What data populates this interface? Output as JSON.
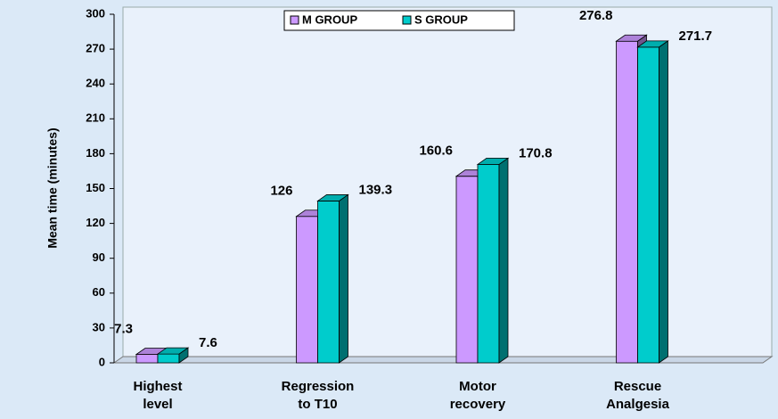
{
  "chart_data": {
    "type": "bar3d",
    "y_label": "Mean time (minutes)",
    "categories": [
      [
        "Highest",
        "level"
      ],
      [
        "Regression",
        "to T10"
      ],
      [
        "Motor",
        "recovery"
      ],
      [
        "Rescue",
        "Analgesia"
      ]
    ],
    "series": [
      {
        "name": "M GROUP",
        "color": "#cc99ff",
        "values": [
          7.3,
          126,
          160.6,
          276.8
        ]
      },
      {
        "name": "S GROUP",
        "color": "#00cccc",
        "values": [
          7.6,
          139.3,
          170.8,
          271.7
        ]
      }
    ],
    "ylim": [
      0,
      300
    ],
    "yticks": [
      0,
      30,
      60,
      90,
      120,
      150,
      180,
      210,
      240,
      270,
      300
    ]
  }
}
